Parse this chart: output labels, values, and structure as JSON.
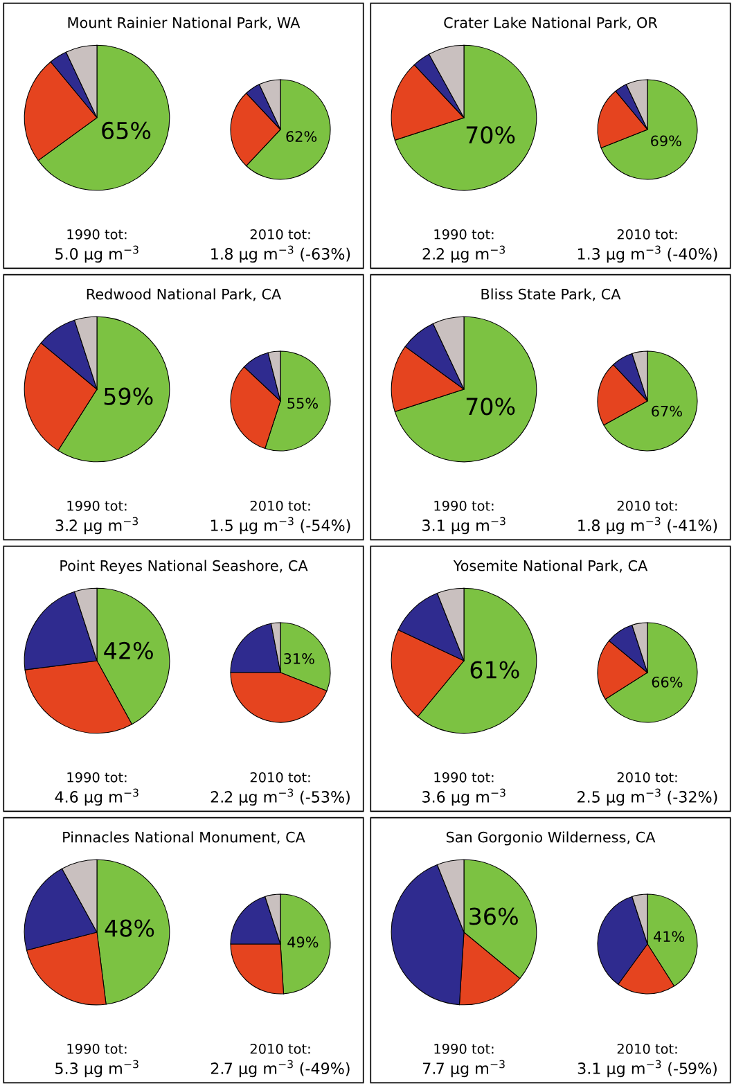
{
  "chart_data": [
    {
      "type": "pie",
      "title": "Mount Rainier National Park, WA",
      "categories": [
        null,
        null,
        null,
        null
      ],
      "values": [
        65,
        24,
        4,
        7
      ],
      "value_labels": [
        "65%",
        null,
        null,
        null
      ],
      "colors": [
        "#7cc242",
        "#e5441f",
        "#2f2b8f",
        "#c9c0bf"
      ],
      "annotations": [
        "1990 tot:",
        "5.0 µg m$^{−3}$"
      ]
    },
    {
      "type": "pie",
      "categories": [
        null,
        null,
        null,
        null
      ],
      "values": [
        62,
        26,
        5,
        7
      ],
      "value_labels": [
        "62%",
        null,
        null,
        null
      ],
      "colors": [
        "#7cc242",
        "#e5441f",
        "#2f2b8f",
        "#c9c0bf"
      ],
      "annotations": [
        "2010 tot:",
        "1.8 µg m$^{−3}$ (-63%)"
      ]
    },
    {
      "type": "pie",
      "title": "Crater Lake National Park, OR",
      "categories": [
        null,
        null,
        null,
        null
      ],
      "values": [
        70,
        18,
        4,
        8
      ],
      "value_labels": [
        "70%",
        null,
        null,
        null
      ],
      "colors": [
        "#7cc242",
        "#e5441f",
        "#2f2b8f",
        "#c9c0bf"
      ],
      "annotations": [
        "1990 tot:",
        "2.2 µg m$^{−3}$"
      ]
    },
    {
      "type": "pie",
      "categories": [
        null,
        null,
        null,
        null
      ],
      "values": [
        69,
        20,
        4,
        7
      ],
      "value_labels": [
        "69%",
        null,
        null,
        null
      ],
      "colors": [
        "#7cc242",
        "#e5441f",
        "#2f2b8f",
        "#c9c0bf"
      ],
      "annotations": [
        "2010 tot:",
        "1.3 µg m$^{−3}$ (-40%)"
      ]
    },
    {
      "type": "pie",
      "title": "Redwood National Park, CA",
      "categories": [
        null,
        null,
        null,
        null
      ],
      "values": [
        59,
        27,
        9,
        5
      ],
      "value_labels": [
        "59%",
        null,
        null,
        null
      ],
      "colors": [
        "#7cc242",
        "#e5441f",
        "#2f2b8f",
        "#c9c0bf"
      ],
      "annotations": [
        "1990 tot:",
        "3.2 µg m$^{−3}$"
      ]
    },
    {
      "type": "pie",
      "categories": [
        null,
        null,
        null,
        null
      ],
      "values": [
        55,
        32,
        9,
        4
      ],
      "value_labels": [
        "55%",
        null,
        null,
        null
      ],
      "colors": [
        "#7cc242",
        "#e5441f",
        "#2f2b8f",
        "#c9c0bf"
      ],
      "annotations": [
        "2010 tot:",
        "1.5 µg m$^{−3}$ (-54%)"
      ]
    },
    {
      "type": "pie",
      "title": "Bliss State Park, CA",
      "categories": [
        null,
        null,
        null,
        null
      ],
      "values": [
        70,
        15,
        8,
        7
      ],
      "value_labels": [
        "70%",
        null,
        null,
        null
      ],
      "colors": [
        "#7cc242",
        "#e5441f",
        "#2f2b8f",
        "#c9c0bf"
      ],
      "annotations": [
        "1990 tot:",
        "3.1 µg m$^{−3}$"
      ]
    },
    {
      "type": "pie",
      "categories": [
        null,
        null,
        null,
        null
      ],
      "values": [
        67,
        21,
        7,
        5
      ],
      "value_labels": [
        "67%",
        null,
        null,
        null
      ],
      "colors": [
        "#7cc242",
        "#e5441f",
        "#2f2b8f",
        "#c9c0bf"
      ],
      "annotations": [
        "2010 tot:",
        "1.8 µg m$^{−3}$ (-41%)"
      ]
    },
    {
      "type": "pie",
      "title": "Point Reyes National Seashore, CA",
      "categories": [
        null,
        null,
        null,
        null
      ],
      "values": [
        42,
        31,
        22,
        5
      ],
      "value_labels": [
        "42%",
        null,
        null,
        null
      ],
      "colors": [
        "#7cc242",
        "#e5441f",
        "#2f2b8f",
        "#c9c0bf"
      ],
      "annotations": [
        "1990 tot:",
        "4.6 µg m$^{−3}$"
      ]
    },
    {
      "type": "pie",
      "categories": [
        null,
        null,
        null,
        null
      ],
      "values": [
        31,
        44,
        22,
        3
      ],
      "value_labels": [
        "31%",
        null,
        null,
        null
      ],
      "colors": [
        "#7cc242",
        "#e5441f",
        "#2f2b8f",
        "#c9c0bf"
      ],
      "annotations": [
        "2010 tot:",
        "2.2 µg m$^{−3}$ (-53%)"
      ]
    },
    {
      "type": "pie",
      "title": "Yosemite National Park, CA",
      "categories": [
        null,
        null,
        null,
        null
      ],
      "values": [
        61,
        21,
        12,
        6
      ],
      "value_labels": [
        "61%",
        null,
        null,
        null
      ],
      "colors": [
        "#7cc242",
        "#e5441f",
        "#2f2b8f",
        "#c9c0bf"
      ],
      "annotations": [
        "1990 tot:",
        "3.6 µg m$^{−3}$"
      ]
    },
    {
      "type": "pie",
      "categories": [
        null,
        null,
        null,
        null
      ],
      "values": [
        66,
        20,
        9,
        5
      ],
      "value_labels": [
        "66%",
        null,
        null,
        null
      ],
      "colors": [
        "#7cc242",
        "#e5441f",
        "#2f2b8f",
        "#c9c0bf"
      ],
      "annotations": [
        "2010 tot:",
        "2.5 µg m$^{−3}$ (-32%)"
      ]
    },
    {
      "type": "pie",
      "title": "Pinnacles National Monument, CA",
      "categories": [
        null,
        null,
        null,
        null
      ],
      "values": [
        48,
        23,
        21,
        8
      ],
      "value_labels": [
        "48%",
        null,
        null,
        null
      ],
      "colors": [
        "#7cc242",
        "#e5441f",
        "#2f2b8f",
        "#c9c0bf"
      ],
      "annotations": [
        "1990 tot:",
        "5.3 µg m$^{−3}$"
      ]
    },
    {
      "type": "pie",
      "categories": [
        null,
        null,
        null,
        null
      ],
      "values": [
        49,
        26,
        20,
        5
      ],
      "value_labels": [
        "49%",
        null,
        null,
        null
      ],
      "colors": [
        "#7cc242",
        "#e5441f",
        "#2f2b8f",
        "#c9c0bf"
      ],
      "annotations": [
        "2010 tot:",
        "2.7 µg m$^{−3}$ (-49%)"
      ]
    },
    {
      "type": "pie",
      "title": "San Gorgonio Wilderness, CA",
      "categories": [
        null,
        null,
        null,
        null
      ],
      "values": [
        36,
        15,
        43,
        6
      ],
      "value_labels": [
        "36%",
        null,
        null,
        null
      ],
      "colors": [
        "#7cc242",
        "#e5441f",
        "#2f2b8f",
        "#c9c0bf"
      ],
      "annotations": [
        "1990 tot:",
        "7.7 µg m$^{−3}$"
      ]
    },
    {
      "type": "pie",
      "categories": [
        null,
        null,
        null,
        null
      ],
      "values": [
        41,
        19,
        35,
        5
      ],
      "value_labels": [
        "41%",
        null,
        null,
        null
      ],
      "colors": [
        "#7cc242",
        "#e5441f",
        "#2f2b8f",
        "#c9c0bf"
      ],
      "annotations": [
        "2010 tot:",
        "3.1 µg m$^{−3}$ (-59%)"
      ]
    }
  ]
}
